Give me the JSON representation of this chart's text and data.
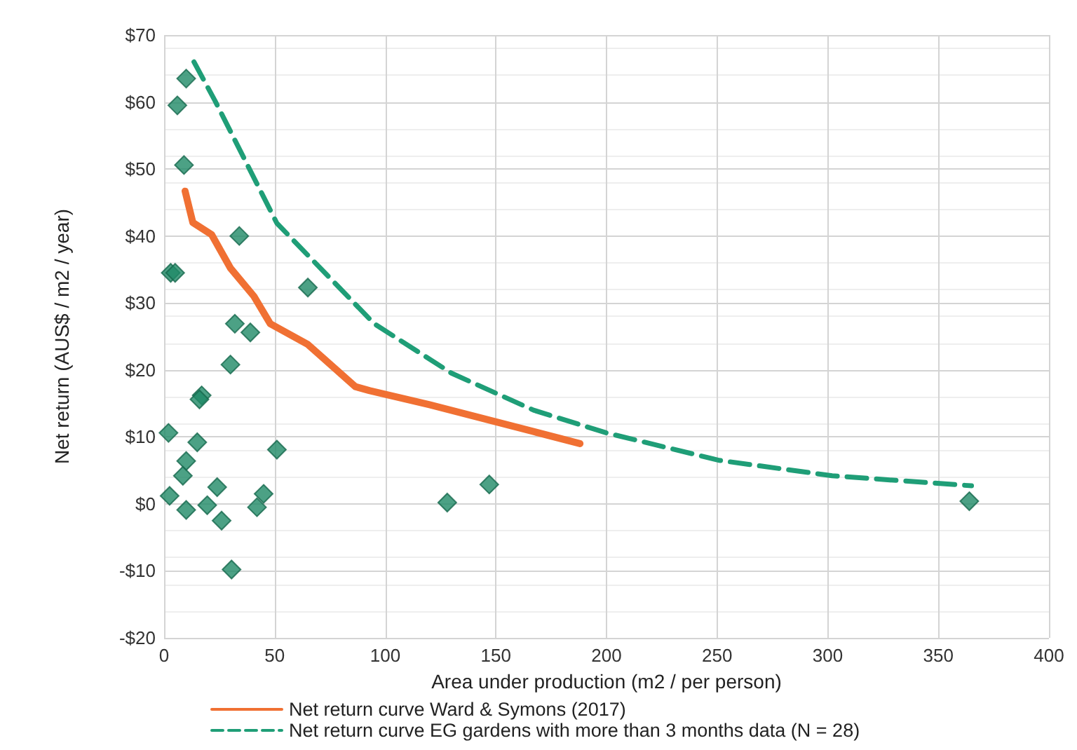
{
  "chart_data": {
    "type": "scatter",
    "xlabel": "Area under production (m2 / per person)",
    "ylabel": "Net return (AUS$ / m2 / year)",
    "xlim": [
      0,
      400
    ],
    "xticks": [
      0,
      50,
      100,
      150,
      200,
      250,
      300,
      350,
      400
    ],
    "ylim": [
      -20,
      70
    ],
    "yticks": [
      {
        "value": -20,
        "label": "-$20"
      },
      {
        "value": -10,
        "label": "-$10"
      },
      {
        "value": 0,
        "label": "$0"
      },
      {
        "value": 10,
        "label": "$10"
      },
      {
        "value": 20,
        "label": "$20"
      },
      {
        "value": 30,
        "label": "$30"
      },
      {
        "value": 40,
        "label": "$40"
      },
      {
        "value": 50,
        "label": "$50"
      },
      {
        "value": 60,
        "label": "$60"
      },
      {
        "value": 70,
        "label": "$70"
      }
    ],
    "grid": true,
    "legend": "bottom",
    "marker": "diamond",
    "series": [
      {
        "type": "line",
        "name": "Net return curve Ward & Symons (2017)",
        "color": "#f07033",
        "line_style": "solid",
        "marker": "none",
        "x": [
          9.5,
          13,
          21.5,
          30,
          40.6,
          48,
          65,
          86.5,
          93,
          120,
          167,
          188
        ],
        "values": [
          46.7,
          42,
          40.2,
          35.2,
          31,
          26.9,
          23.8,
          17.5,
          16.9,
          14.8,
          10.8,
          9.0
        ]
      },
      {
        "type": "line",
        "name": "Net return curve EG gardens with more than 3 months data (N = 28)",
        "color": "#1f9e77",
        "line_style": "dashed",
        "marker": "none",
        "x": [
          13.5,
          23,
          51,
          95,
          130,
          167,
          200,
          251,
          302,
          365
        ],
        "values": [
          66,
          60.2,
          41.9,
          26.9,
          19.5,
          14,
          10.6,
          6.5,
          4.2,
          2.7
        ]
      },
      {
        "color": "#1f8a66",
        "x": [
          3,
          5,
          10,
          6,
          9,
          34,
          65,
          32,
          39,
          30,
          17,
          16,
          2,
          15,
          51,
          10,
          8.5,
          24,
          2.5,
          45,
          10,
          19.5,
          42,
          26,
          30.5,
          128,
          147,
          364
        ],
        "values": [
          34.5,
          34.5,
          63.5,
          59.5,
          50.6,
          40,
          32.3,
          26.9,
          25.6,
          20.8,
          16.2,
          15.6,
          10.6,
          9.2,
          8.1,
          6.4,
          4.2,
          2.5,
          1.2,
          1.5,
          -0.9,
          -0.2,
          -0.5,
          -2.5,
          -9.8,
          0.2,
          2.9,
          0.4
        ]
      }
    ]
  }
}
